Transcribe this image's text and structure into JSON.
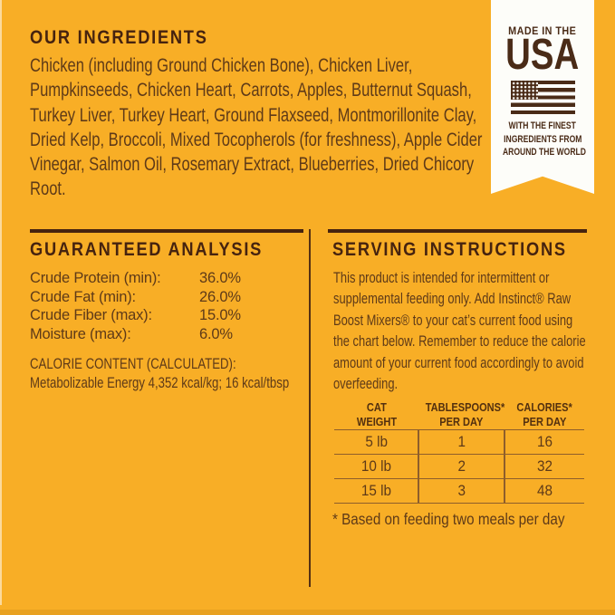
{
  "colors": {
    "background": "#F8AE26",
    "heading_brown": "#46230F",
    "body_brown": "#5E3A18",
    "table_line_brown": "#8E5E2B",
    "ribbon_background": "#FDFDF9",
    "ribbon_brown": "#4A2B17"
  },
  "ingredients": {
    "heading": "OUR INGREDIENTS",
    "body": "Chicken (including Ground Chicken Bone), Chicken Liver, Pumpkinseeds, Chicken Heart, Carrots, Apples, Butternut Squash, Turkey Liver, Turkey Heart, Ground Flaxseed, Montmorillonite Clay, Dried Kelp, Broccoli, Mixed Tocopherols (for freshness), Apple Cider Vinegar, Salmon Oil, Rosemary Extract, Blueberries, Dried Chicory Root."
  },
  "made_in_usa_badge": {
    "top_label": "MADE IN THE",
    "country": "USA",
    "flag_icon": "us-flag-icon",
    "tagline_lines": [
      "WITH THE FINEST",
      "INGREDIENTS FROM",
      "AROUND THE WORLD"
    ]
  },
  "guaranteed_analysis": {
    "heading": "GUARANTEED ANALYSIS",
    "rows": [
      {
        "label": "Crude Protein (min):",
        "value": "36.0%"
      },
      {
        "label": "Crude Fat (min):",
        "value": "26.0%"
      },
      {
        "label": "Crude Fiber (max):",
        "value": "15.0%"
      },
      {
        "label": "Moisture (max):",
        "value": "6.0%"
      }
    ],
    "calorie_heading": "CALORIE CONTENT (CALCULATED):",
    "calorie_detail": "Metabolizable Energy 4,352 kcal/kg; 16 kcal/tbsp"
  },
  "serving_instructions": {
    "heading": "SERVING INSTRUCTIONS",
    "body": "This product is intended for intermittent or supplemental feeding only. Add Instinct® Raw Boost Mixers® to your cat’s current food using the chart below. Remember to reduce the calorie amount of your current food accordingly to avoid overfeeding.",
    "table": {
      "columns": [
        [
          "CAT",
          "WEIGHT"
        ],
        [
          "TABLESPOONS*",
          "PER DAY"
        ],
        [
          "CALORIES*",
          "PER DAY"
        ]
      ],
      "rows": [
        [
          "5 lb",
          "1",
          "16"
        ],
        [
          "10 lb",
          "2",
          "32"
        ],
        [
          "15 lb",
          "3",
          "48"
        ]
      ]
    },
    "footnote": "* Based on feeding two meals per day"
  }
}
